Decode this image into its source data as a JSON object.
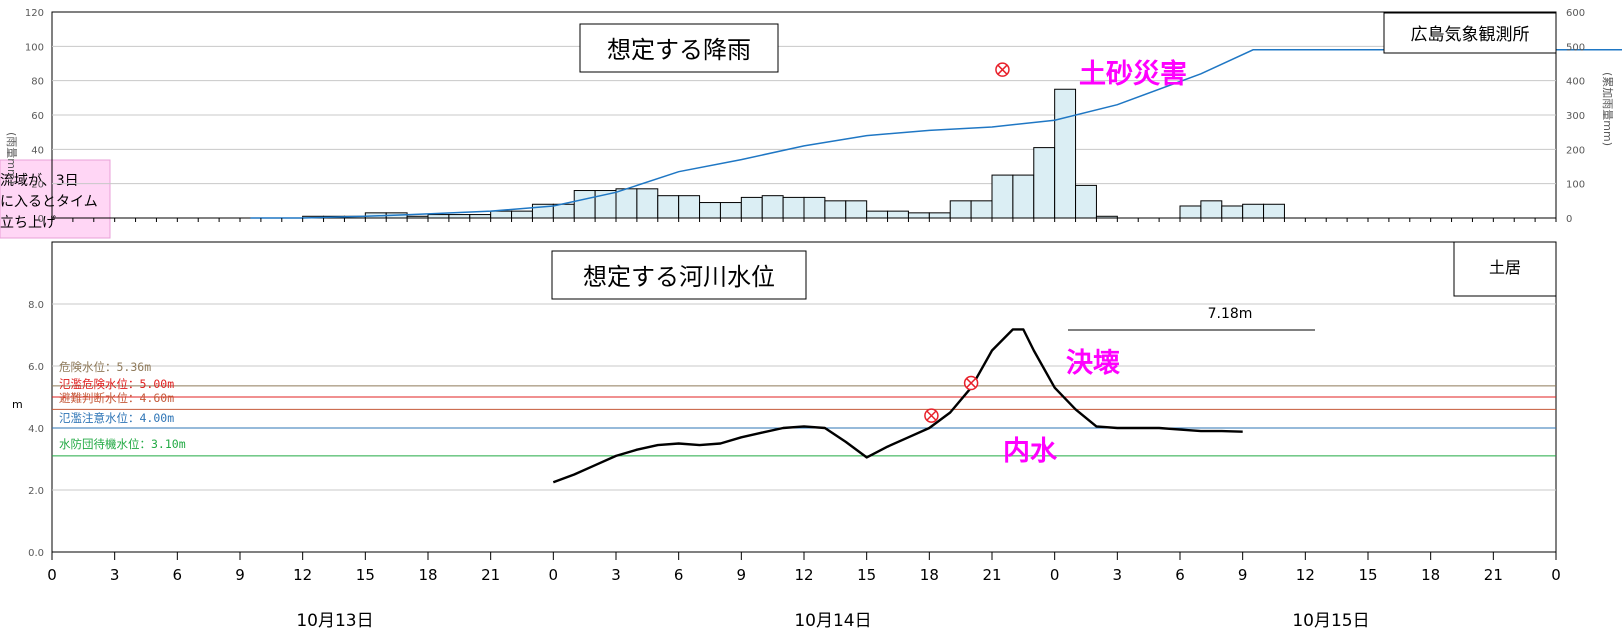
{
  "chart_data": [
    {
      "type": "bar",
      "title": "想定する降雨",
      "station": "広島気象観測所",
      "ylabel": "(雨量mm)",
      "y2label": "(累加雨量mm)",
      "ylim": [
        0,
        120
      ],
      "y2lim": [
        0,
        600
      ],
      "yticks": [
        "120",
        "100",
        "80",
        "60",
        "40",
        "20",
        "0"
      ],
      "y2ticks": [
        "600",
        "500",
        "400",
        "300",
        "200",
        "100",
        "0"
      ],
      "grid": true,
      "series": [
        {
          "kind": "bar",
          "x_hours": [
            11,
            12,
            13,
            14,
            15,
            16,
            17,
            18,
            19,
            20,
            21,
            22,
            23,
            24,
            25,
            26,
            27,
            28,
            29,
            30,
            31,
            32,
            33,
            34,
            35,
            36,
            37,
            38,
            39,
            40,
            41,
            42,
            43,
            44,
            45,
            46,
            47,
            48,
            49,
            50,
            51,
            52,
            53,
            54,
            55,
            56,
            57,
            58,
            59
          ],
          "values": [
            0,
            1,
            1,
            1,
            3,
            3,
            1,
            2,
            2,
            2,
            4,
            4,
            8,
            8,
            16,
            16,
            17,
            17,
            13,
            13,
            9,
            9,
            12,
            13,
            12,
            12,
            10,
            10,
            4,
            4,
            3,
            3,
            10,
            10,
            25,
            25,
            41,
            75,
            19,
            1,
            0,
            0,
            0,
            7,
            10,
            7,
            8,
            8,
            0
          ]
        },
        {
          "kind": "line",
          "x_hours": [
            9.5,
            12,
            15,
            18,
            21,
            24,
            27,
            30,
            33,
            36,
            39,
            42,
            45,
            48,
            51,
            55,
            57.5,
            60,
            62,
            63,
            64,
            65.5,
            66.5,
            67,
            68,
            72,
            75,
            78,
            81,
            84,
            87,
            90
          ],
          "values": [
            0,
            0,
            5,
            12,
            20,
            35,
            75,
            135,
            170,
            210,
            240,
            255,
            265,
            285,
            330,
            420,
            490,
            490,
            490,
            490,
            490,
            490,
            490,
            490,
            490,
            490,
            490,
            490,
            490,
            490,
            490,
            490
          ]
        }
      ],
      "annotations": [
        {
          "label": "土砂災害",
          "x_hours": 45.5,
          "cum_mm": 432
        }
      ]
    },
    {
      "type": "line",
      "title": "想定する河川水位",
      "station": "土居",
      "ylabel": "m",
      "ylim": [
        0,
        10
      ],
      "yticks": [
        "8.0",
        "6.0",
        "4.0",
        "2.0",
        "0.0"
      ],
      "grid": true,
      "series": [
        {
          "name": "水位",
          "x_hours": [
            24,
            25,
            26,
            27,
            28,
            29,
            30,
            31,
            32,
            33,
            34,
            35,
            36,
            37,
            38,
            39,
            40,
            41,
            42,
            43,
            44,
            45,
            46,
            46.5,
            47,
            48,
            49,
            50,
            51,
            52,
            53,
            54,
            55,
            56,
            57
          ],
          "values": [
            2.25,
            2.5,
            2.8,
            3.1,
            3.3,
            3.45,
            3.5,
            3.45,
            3.5,
            3.7,
            3.85,
            4.0,
            4.05,
            4.0,
            3.55,
            3.05,
            3.4,
            3.7,
            4.0,
            4.5,
            5.3,
            6.5,
            7.18,
            7.18,
            6.5,
            5.3,
            4.6,
            4.05,
            4.0,
            4.0,
            4.0,
            3.95,
            3.9,
            3.9,
            3.88
          ]
        }
      ],
      "thresholds": [
        {
          "label": "危険水位：5.36m",
          "value": 5.36,
          "color": "#8f7a5a"
        },
        {
          "label": "氾濫危険水位：5.00m",
          "value": 5.0,
          "color": "#e02020"
        },
        {
          "label": "避難判断水位：4.60m",
          "value": 4.6,
          "color": "#c55a3a"
        },
        {
          "label": "氾濫注意水位：4.00m",
          "value": 4.0,
          "color": "#2e75b6"
        },
        {
          "label": "水防団待機水位：3.10m",
          "value": 3.1,
          "color": "#22aa44"
        }
      ],
      "peak_label": "7.18m",
      "annotations": [
        {
          "label": "内水",
          "x_hours": 42.1,
          "value": 4.4
        },
        {
          "label": "決壊",
          "x_hours": 44.0,
          "value": 5.45
        }
      ]
    }
  ],
  "x_axis": {
    "ticks": [
      "0",
      "3",
      "6",
      "9",
      "12",
      "15",
      "18",
      "21",
      "0",
      "3",
      "6",
      "9",
      "12",
      "15",
      "18",
      "21",
      "0",
      "3",
      "6",
      "9",
      "12",
      "15",
      "18",
      "21",
      "0"
    ],
    "dates": [
      "10月13日",
      "10月14日",
      "10月15日"
    ]
  },
  "side_note": {
    "lines": [
      "流域が、3日",
      "に入るとタイム",
      "立ち上げ"
    ]
  },
  "colors": {
    "bar_fill": "#dbeef4",
    "bar_stroke": "#000000",
    "cum_line": "#1f77c4",
    "marker": "#e8202a",
    "annotation_text": "#ff00ff"
  }
}
